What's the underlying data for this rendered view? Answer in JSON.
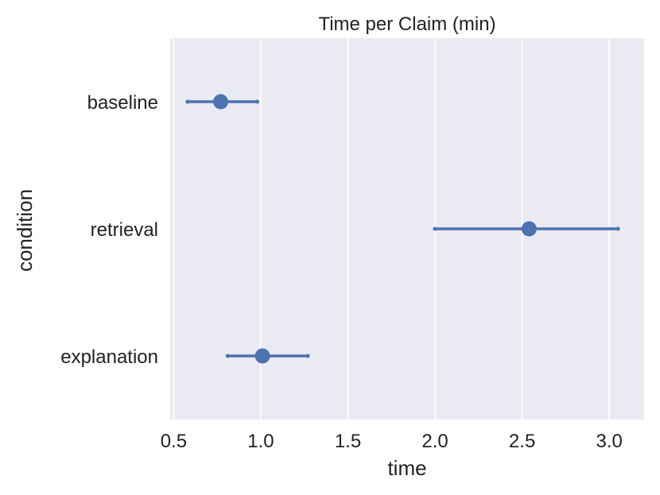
{
  "chart_data": {
    "type": "pointplot",
    "title": "Time per Claim (min)",
    "xlabel": "time",
    "ylabel": "condition",
    "orientation": "horizontal",
    "categories": [
      "baseline",
      "retrieval",
      "explanation"
    ],
    "x_ticks": [
      "0.5",
      "1.0",
      "1.5",
      "2.0",
      "2.5",
      "3.0"
    ],
    "xlim": [
      0.48,
      3.2
    ],
    "grid": true,
    "colors": {
      "background": "#EAEAF2",
      "grid": "#FFFFFF",
      "marker": "#4C72B0"
    },
    "points": [
      {
        "category": "baseline",
        "mean": 0.77,
        "ci_low": 0.58,
        "ci_high": 0.98
      },
      {
        "category": "retrieval",
        "mean": 2.54,
        "ci_low": 2.0,
        "ci_high": 3.05
      },
      {
        "category": "explanation",
        "mean": 1.01,
        "ci_low": 0.81,
        "ci_high": 1.27
      }
    ]
  }
}
